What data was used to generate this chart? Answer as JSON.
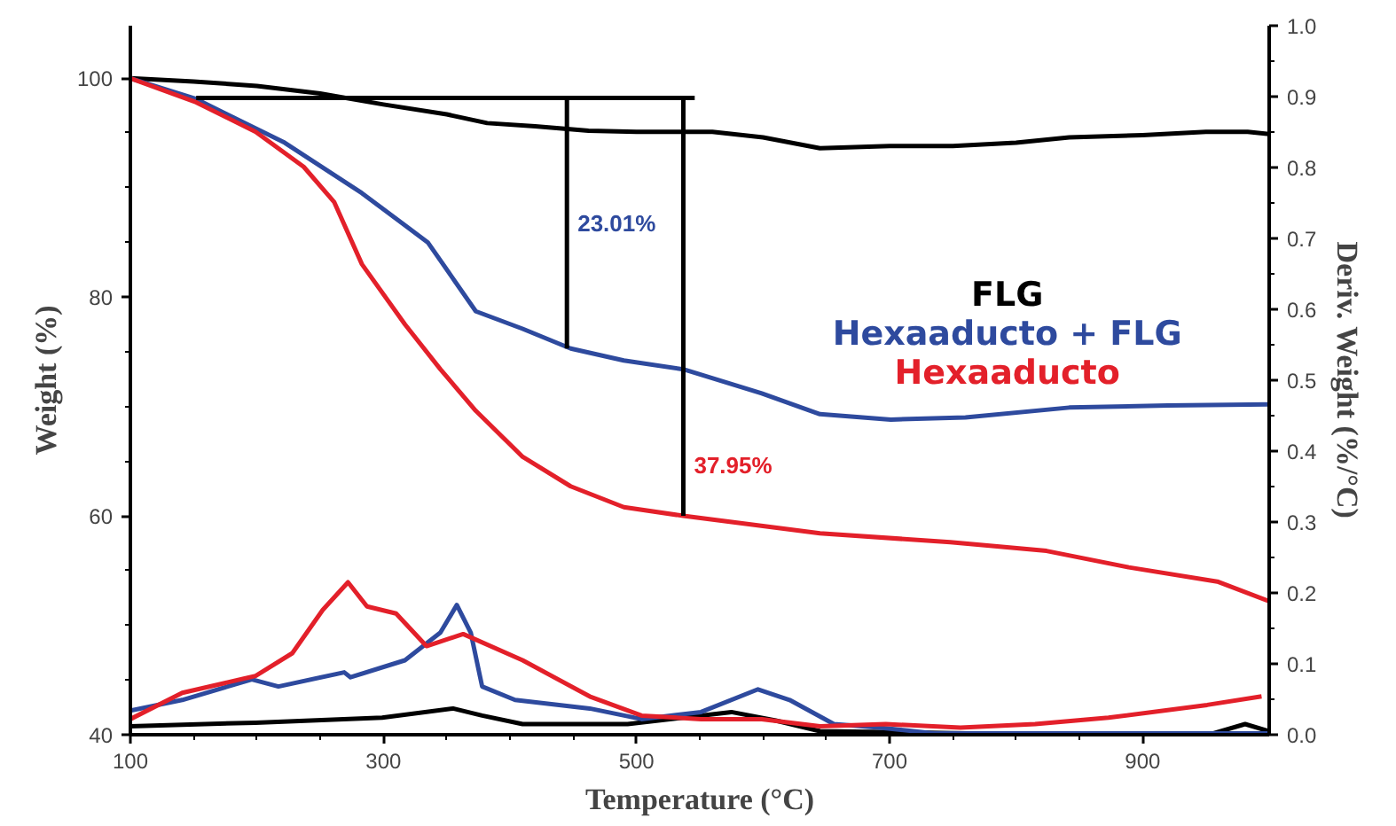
{
  "chart_data": {
    "type": "line",
    "xlabel": "Temperature (°C)",
    "ylabel": "Weight (%)",
    "y2label": "Deriv. Weight (%/°C)",
    "xlim": [
      100,
      1000
    ],
    "xticks": [
      100,
      300,
      500,
      700,
      900
    ],
    "ylim": [
      40,
      104.8
    ],
    "yticks": [
      40,
      60,
      80,
      100
    ],
    "y2lim": [
      0,
      1.0
    ],
    "y2ticks": [
      {
        "value": 0,
        "label": "0.0"
      },
      0.1,
      0.2,
      0.3,
      0.4,
      0.5,
      0.6,
      0.7,
      0.8,
      0.9,
      {
        "value": 1.0,
        "label": "1.0"
      }
    ],
    "grid": false,
    "legend": "right",
    "line_style": "solid",
    "marker": "none",
    "series": [
      {
        "name": "FLG",
        "color": "#000000",
        "x": [
          100,
          150,
          200,
          250,
          300,
          350,
          382,
          420,
          462,
          500,
          560,
          600,
          645,
          700,
          750,
          800,
          842,
          900,
          950,
          983,
          1000
        ],
        "values": [
          100,
          99.7,
          99.3,
          98.6,
          97.6,
          96.7,
          95.9,
          95.6,
          95.2,
          95.1,
          95.1,
          94.6,
          93.6,
          93.8,
          93.8,
          94.1,
          94.6,
          94.8,
          95.1,
          95.1,
          94.9
        ]
      },
      {
        "name": "Hexaaducto + FLG",
        "color": "#2e4a9e",
        "x": [
          100,
          152,
          222,
          283,
          335,
          373,
          410,
          448,
          490,
          537,
          599,
          645,
          701,
          760,
          842,
          920,
          1000
        ],
        "values": [
          100,
          98.1,
          94.1,
          89.5,
          85.0,
          78.7,
          77.1,
          75.3,
          74.2,
          73.4,
          71.2,
          69.3,
          68.8,
          69.0,
          69.9,
          70.1,
          70.2
        ]
      },
      {
        "name": "Hexaaducto",
        "color": "#e3202a",
        "x": [
          100,
          152,
          199,
          237,
          261,
          283,
          317,
          345,
          373,
          410,
          448,
          490,
          537,
          645,
          748,
          824,
          889,
          959,
          1000
        ],
        "values": [
          100,
          97.8,
          95.1,
          91.9,
          88.7,
          83.0,
          77.5,
          73.4,
          69.6,
          65.4,
          62.7,
          60.8,
          60.0,
          58.4,
          57.6,
          56.8,
          55.3,
          54.0,
          52.2
        ]
      },
      {
        "color": "#000000",
        "axis": "y2",
        "x": [
          100,
          199,
          299,
          355,
          378,
          410,
          493,
          575,
          610,
          645,
          762,
          956,
          981,
          1000
        ],
        "values": [
          0.012,
          0.017,
          0.024,
          0.037,
          0.027,
          0.015,
          0.015,
          0.032,
          0.02,
          0.005,
          0.002,
          0.002,
          0.015,
          0.005
        ]
      },
      {
        "color": "#2e4a9e",
        "axis": "y2",
        "x": [
          100,
          141,
          196,
          217,
          269,
          274,
          317,
          345,
          358,
          369,
          378,
          404,
          463,
          504,
          551,
          596,
          621,
          656,
          692,
          735,
          1000
        ],
        "values": [
          0.034,
          0.049,
          0.078,
          0.068,
          0.088,
          0.081,
          0.105,
          0.144,
          0.183,
          0.144,
          0.068,
          0.049,
          0.037,
          0.022,
          0.032,
          0.064,
          0.049,
          0.015,
          0.01,
          0.002,
          0.002
        ]
      },
      {
        "color": "#e3202a",
        "axis": "y2",
        "x": [
          100,
          141,
          199,
          228,
          252,
          272,
          287,
          310,
          334,
          363,
          410,
          463,
          504,
          551,
          599,
          645,
          697,
          756,
          815,
          873,
          951,
          994
        ],
        "values": [
          0.022,
          0.059,
          0.083,
          0.115,
          0.176,
          0.215,
          0.181,
          0.171,
          0.125,
          0.142,
          0.105,
          0.054,
          0.027,
          0.022,
          0.022,
          0.012,
          0.015,
          0.01,
          0.015,
          0.024,
          0.042,
          0.054
        ]
      },
      {
        "color": "#000000",
        "x": [
          152,
          546
        ],
        "values": [
          98.2,
          98.2
        ]
      },
      {
        "color": "#000000",
        "x": [
          445,
          445
        ],
        "values": [
          98.2,
          75.3
        ]
      },
      {
        "color": "#000000",
        "x": [
          537,
          537
        ],
        "values": [
          98.2,
          60.0
        ]
      }
    ],
    "annotations": [
      "23.01%",
      "37.95%"
    ]
  }
}
